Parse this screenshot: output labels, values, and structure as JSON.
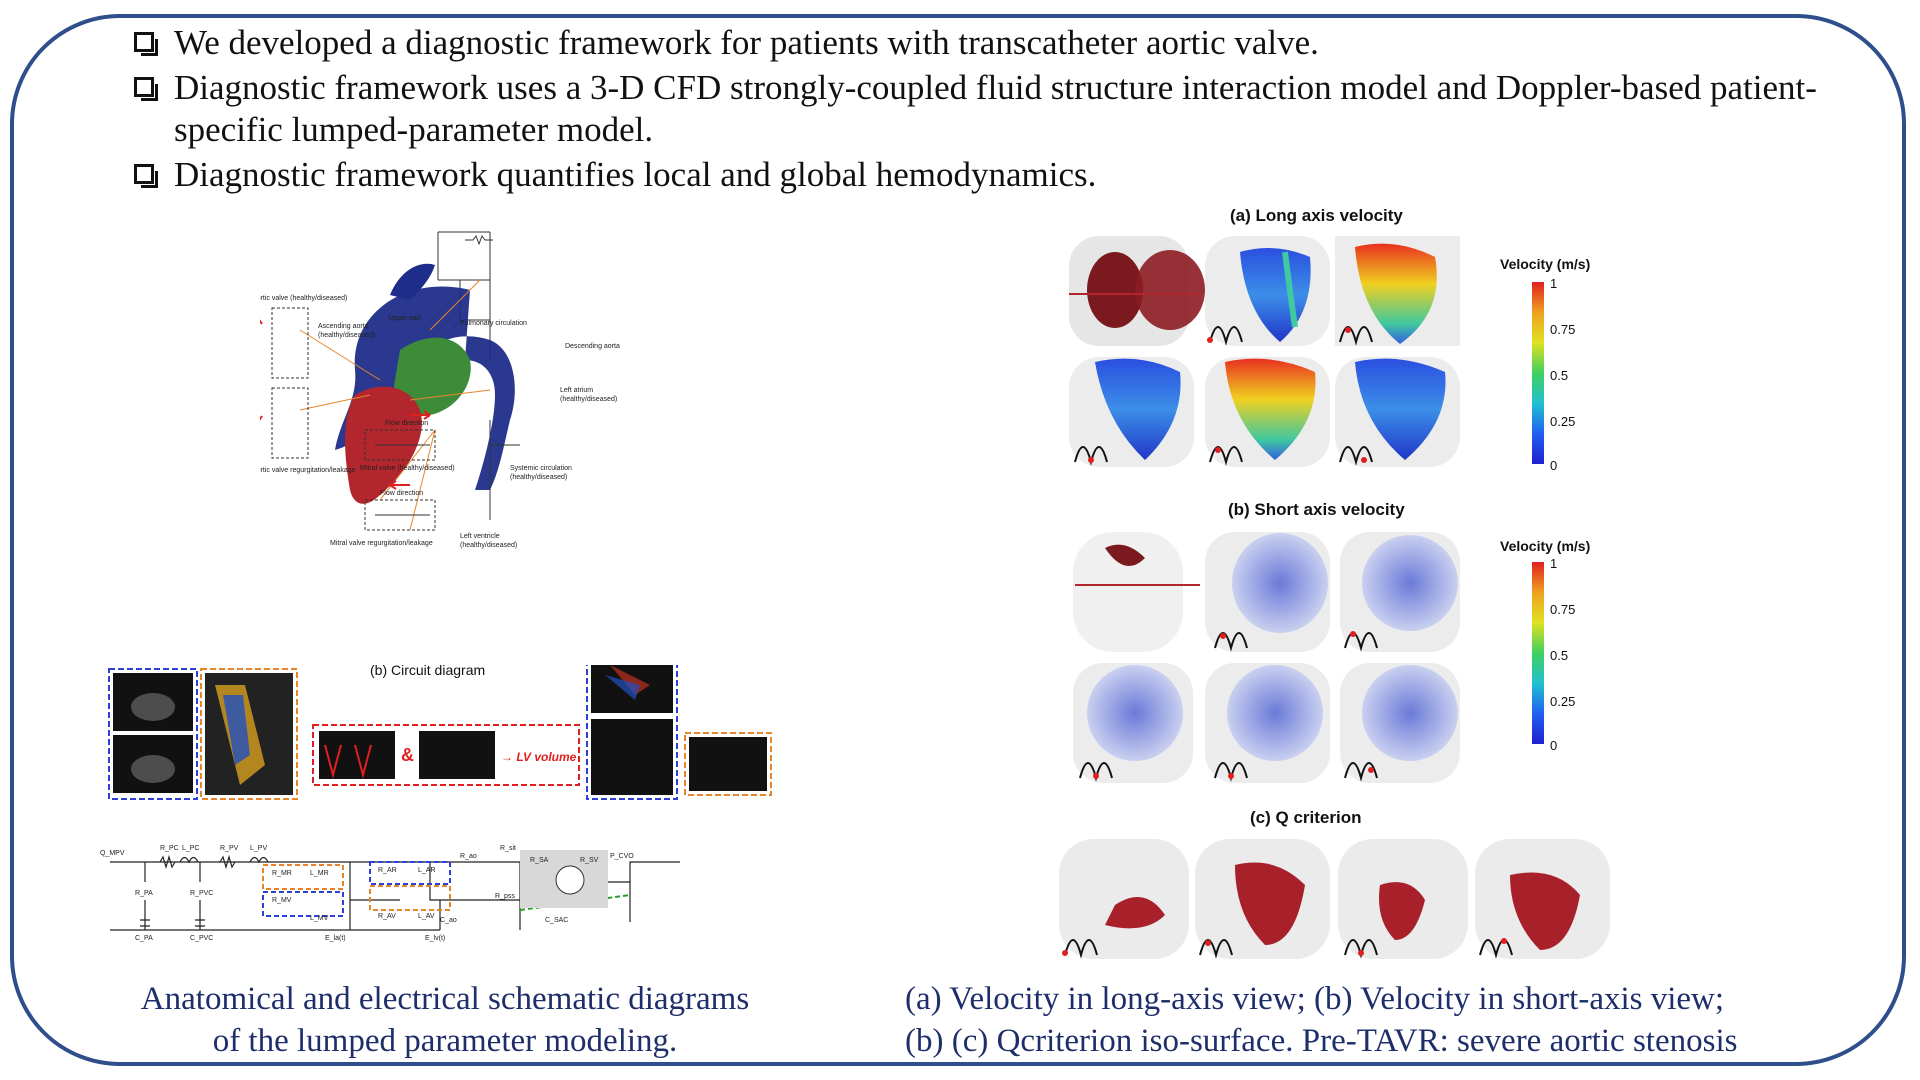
{
  "bullets": [
    "We developed a diagnostic framework for patients with transcatheter aortic valve.",
    "Diagnostic framework uses a 3-D CFD strongly-coupled fluid structure interaction model and Doppler-based patient-specific lumped-parameter model.",
    "Diagnostic framework quantifies local and global hemodynamics."
  ],
  "left_figure": {
    "circuit_caption": "(b) Circuit diagram",
    "labels": {
      "upper_part": "Upper part",
      "pulmonary": "Pulmonary circulation",
      "descending_aorta": "Descending aorta",
      "aortic_valve": "Aortic valve (healthy/diseased)",
      "ascending_aorta": "Ascending aorta (healthy/diseased)",
      "left_atrium": "Left atrium (healthy/diseased)",
      "mitral_valve": "Mitral valve (healthy/diseased)",
      "systemic": "Systemic circulation (healthy/diseased)",
      "aortic_regurg": "Aortic valve regurgitation/leakage",
      "mitral_regurg": "Mitral valve regurgitation/leakage",
      "left_ventricle": "Left ventricle (healthy/diseased)",
      "flow_direction": "Flow direction",
      "lv_volume": "→ LV volume",
      "amp": "&"
    },
    "lp_labels": [
      "Q_MPV",
      "R_PC",
      "L_PC",
      "R_PV",
      "L_PV",
      "R_PA",
      "C_PA",
      "R_PVC",
      "C_PVC",
      "R_MR",
      "L_MR",
      "R_MV",
      "L_MV",
      "R_AR",
      "L_AR",
      "R_AV",
      "L_AV",
      "R_ao",
      "R_sit",
      "R_SA",
      "R_SV",
      "P_CVO",
      "C_ao",
      "C_SAC",
      "E_la(t)",
      "E_lv(t)",
      "R_pss"
    ]
  },
  "left_caption": [
    "Anatomical and electrical schematic diagrams",
    "of the lumped parameter modeling."
  ],
  "right_figure": {
    "title_a": "(a) Long axis velocity",
    "title_b": "(b) Short axis velocity",
    "title_c": "(c) Q criterion",
    "colorbar_title": "Velocity (m/s)",
    "colorbar_ticks": [
      "1",
      "0.75",
      "0.5",
      "0.25",
      "0"
    ]
  },
  "right_caption": [
    "(a)  Velocity in long-axis view; (b) Velocity in short-axis view;",
    "(b)  (c) Qcriterion iso-surface. Pre-TAVR: severe aortic stenosis"
  ],
  "colors": {
    "frame": "#2f4e8c",
    "caption": "#1e2e6b",
    "aorta": "#1f2d8a",
    "heart_red": "#b3262e",
    "atrium_green": "#3e8c3a",
    "dash_blue": "#2e3fd6",
    "dash_orange": "#e8852a",
    "dash_red": "#e02020",
    "dash_green": "#2aa02a"
  }
}
